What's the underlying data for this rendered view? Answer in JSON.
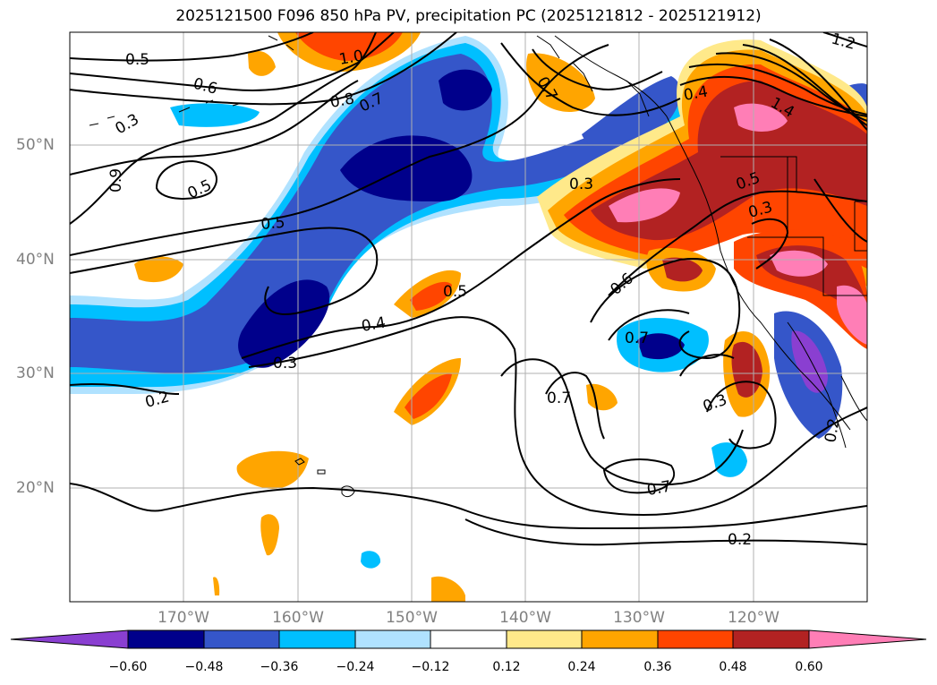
{
  "title": "2025121500 F096 850 hPa PV, precipitation PC (2025121812 - 2025121912)",
  "lat_labels": [
    "50°N",
    "40°N",
    "30°N",
    "20°N"
  ],
  "lon_labels": [
    "170°W",
    "160°W",
    "150°W",
    "140°W",
    "130°W",
    "120°W"
  ],
  "contour_labels": [
    "0.5",
    "0.6",
    "0.8",
    "0.7",
    "0.5",
    "0.5",
    "0.9",
    "0.5",
    "0.3",
    "0.4",
    "0.3",
    "0.5",
    "0.4",
    "0.7",
    "0.3",
    "0.2",
    "0.6",
    "0.7",
    "0.7",
    "0.3",
    "0.7",
    "0.2",
    "1.4",
    "0.3",
    "1.2",
    "1.0",
    "0.2"
  ],
  "colorbar": {
    "ticks": [
      "−0.60",
      "−0.48",
      "−0.36",
      "−0.24",
      "−0.12",
      "0.12",
      "0.24",
      "0.36",
      "0.48",
      "0.60"
    ],
    "colors": [
      "#8a3fd1",
      "#00008b",
      "#3556c9",
      "#00bfff",
      "#b0e2ff",
      "#ffffff",
      "#ffe98a",
      "#ffa500",
      "#ff4500",
      "#b22222",
      "#ff7eb6"
    ]
  }
}
